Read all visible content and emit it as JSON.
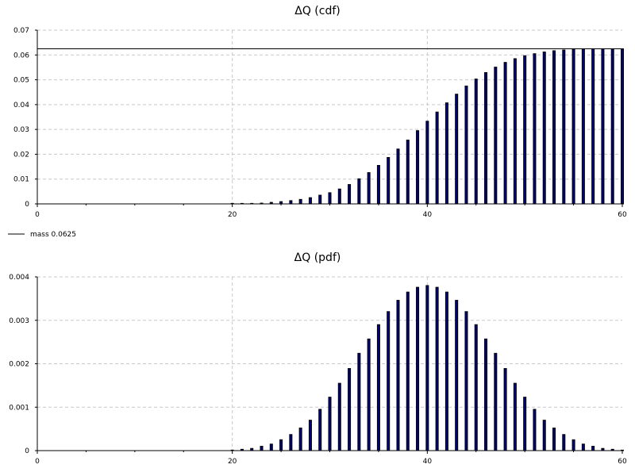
{
  "chart_data": [
    {
      "type": "bar",
      "title": "ΔQ (cdf)",
      "xlabel": "",
      "ylabel": "",
      "xlim": [
        0,
        60
      ],
      "ylim": [
        0,
        0.07
      ],
      "xticks": [
        "0",
        "20",
        "40",
        "60"
      ],
      "yticks": [
        "0",
        "0.01",
        "0.02",
        "0.03",
        "0.04",
        "0.05",
        "0.06",
        "0.07"
      ],
      "grid": true,
      "legend": "below-left",
      "reference_line": {
        "label": "mass 0.0625",
        "y": 0.0625
      },
      "x": [
        20,
        21,
        22,
        23,
        24,
        25,
        26,
        27,
        28,
        29,
        30,
        31,
        32,
        33,
        34,
        35,
        36,
        37,
        38,
        39,
        40,
        41,
        42,
        43,
        44,
        45,
        46,
        47,
        48,
        49,
        50,
        51,
        52,
        53,
        54,
        55,
        56,
        57,
        58,
        59,
        60
      ],
      "values": [
        3e-05,
        8e-05,
        0.0002,
        0.0003,
        0.0006,
        0.0009,
        0.0013,
        0.0018,
        0.0025,
        0.0035,
        0.0045,
        0.006,
        0.0078,
        0.0101,
        0.0126,
        0.0155,
        0.0187,
        0.0221,
        0.0257,
        0.0295,
        0.0333,
        0.037,
        0.0407,
        0.0442,
        0.0475,
        0.0503,
        0.0529,
        0.0551,
        0.057,
        0.0585,
        0.0597,
        0.0605,
        0.0612,
        0.0617,
        0.062,
        0.0623,
        0.0624,
        0.0625,
        0.0625,
        0.0625,
        0.0625
      ]
    },
    {
      "type": "bar",
      "title": "ΔQ (pdf)",
      "xlabel": "",
      "ylabel": "",
      "xlim": [
        0,
        60
      ],
      "ylim": [
        0,
        0.004
      ],
      "xticks": [
        "0",
        "20",
        "40",
        "60"
      ],
      "yticks": [
        "0",
        "0.001",
        "0.002",
        "0.003",
        "0.004"
      ],
      "grid": true,
      "x": [
        20,
        21,
        22,
        23,
        24,
        25,
        26,
        27,
        28,
        29,
        30,
        31,
        32,
        33,
        34,
        35,
        36,
        37,
        38,
        39,
        40,
        41,
        42,
        43,
        44,
        45,
        46,
        47,
        48,
        49,
        50,
        51,
        52,
        53,
        54,
        55,
        56,
        57,
        58,
        59,
        60
      ],
      "values": [
        1e-05,
        3e-05,
        5e-05,
        0.0001,
        0.00015,
        0.00025,
        0.00037,
        0.00052,
        0.0007,
        0.00095,
        0.00123,
        0.00155,
        0.00189,
        0.00224,
        0.00257,
        0.0029,
        0.0032,
        0.00346,
        0.00365,
        0.00376,
        0.0038,
        0.00376,
        0.00365,
        0.00346,
        0.0032,
        0.0029,
        0.00257,
        0.00224,
        0.00189,
        0.00155,
        0.00123,
        0.00095,
        0.0007,
        0.00052,
        0.00037,
        0.00025,
        0.00015,
        0.0001,
        5e-05,
        3e-05,
        1e-05
      ]
    }
  ]
}
